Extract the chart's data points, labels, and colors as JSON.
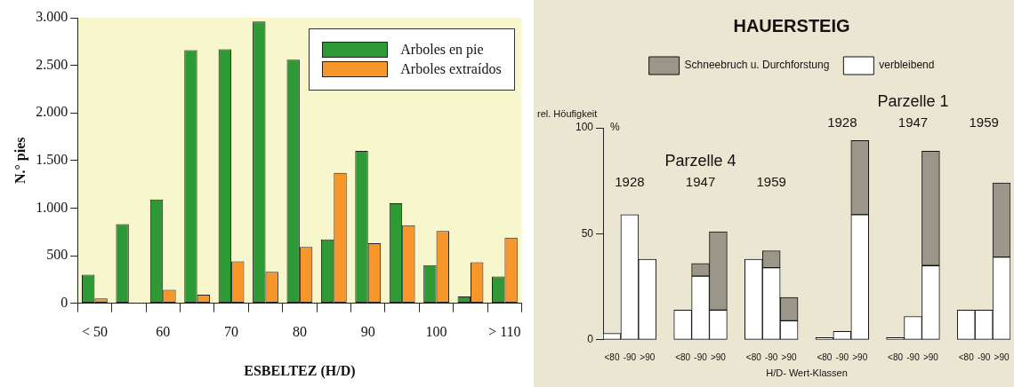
{
  "chart_data": [
    {
      "type": "bar",
      "xlabel": "ESBELTEZ (H/D)",
      "ylabel": "N.° pies",
      "categories": [
        "< 50",
        null,
        "60",
        null,
        "70",
        null,
        "80",
        null,
        "90",
        null,
        "100",
        null,
        "> 110"
      ],
      "series": [
        {
          "name": "Arboles en pie",
          "color": "#2e9a35",
          "values": [
            300,
            830,
            1090,
            2660,
            2670,
            2960,
            2560,
            670,
            1600,
            1050,
            400,
            70,
            280
          ]
        },
        {
          "name": "Arboles extraídos",
          "color": "#f7962a",
          "values": [
            50,
            null,
            140,
            90,
            440,
            330,
            590,
            1370,
            630,
            820,
            760,
            430,
            690
          ]
        }
      ],
      "ylim": [
        0,
        3000
      ],
      "yticks": [
        {
          "value": 0,
          "label": "0"
        },
        {
          "value": 500,
          "label": "500"
        },
        {
          "value": 1000,
          "label": "1.000"
        },
        {
          "value": 1500,
          "label": "1.500"
        },
        {
          "value": 2000,
          "label": "2.000"
        },
        {
          "value": 2500,
          "label": "2.500"
        },
        {
          "value": 3000,
          "label": "3.000"
        }
      ],
      "grid": false,
      "legend": "top right"
    },
    {
      "type": "bar",
      "title": "HAUERSTEIG",
      "xlabel": "H/D- Wert-Klassen",
      "ylabel": "rel. Höufigkeit",
      "stacked": true,
      "categories": [
        "<80",
        "-90",
        ">90",
        null,
        "<80",
        "-90",
        ">90",
        null,
        "<80",
        "-90",
        ">90",
        null,
        "<80",
        "-90",
        ">90",
        null,
        "<80",
        "-90",
        ">90",
        null,
        "<80",
        "-90",
        ">90"
      ],
      "series": [
        {
          "name": "verbleibend",
          "color": "#ffffff",
          "values": [
            3,
            59,
            38,
            null,
            14,
            30,
            14,
            null,
            38,
            34,
            9,
            null,
            1,
            4,
            59,
            null,
            1,
            11,
            35,
            null,
            14,
            14,
            39
          ]
        },
        {
          "name": "Schneebruch u. Durchforstung",
          "color": "#9a968a",
          "values": [
            null,
            null,
            null,
            null,
            null,
            6,
            37,
            null,
            null,
            8,
            11,
            null,
            null,
            null,
            35,
            null,
            null,
            null,
            54,
            null,
            null,
            null,
            35
          ]
        }
      ],
      "ylim": [
        0,
        100
      ],
      "yticks": [
        0,
        50,
        100
      ],
      "grid": false,
      "legend": "top",
      "annotations": [
        "%",
        "Parzelle 4",
        "1928",
        "1947",
        "1959",
        "Parzelle 1",
        "1928",
        "1947",
        "1959"
      ]
    }
  ]
}
